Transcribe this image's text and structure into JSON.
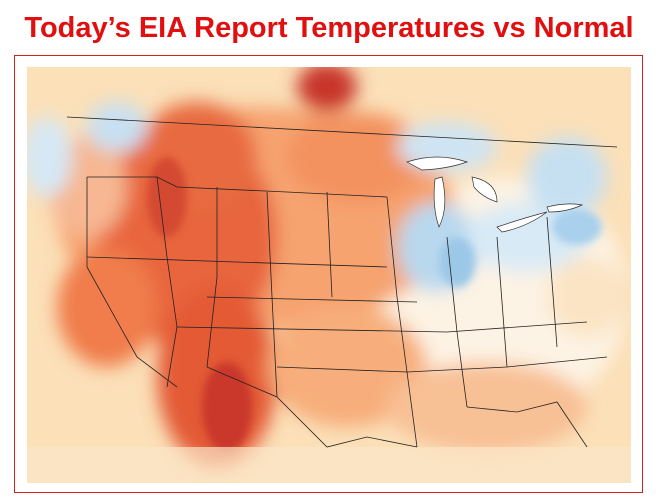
{
  "header": {
    "title": "Today’s EIA Report Temperatures vs Normal"
  }
}
